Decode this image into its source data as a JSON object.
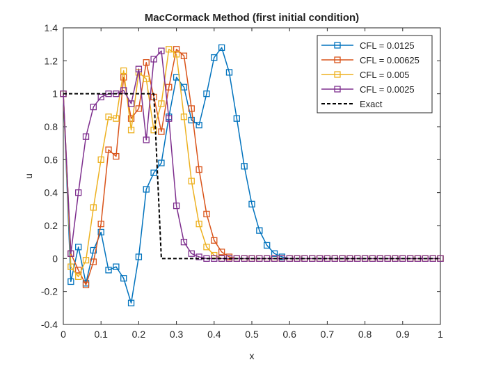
{
  "chart_data": {
    "type": "line",
    "title": "MacCormack Method (first initial condition)",
    "xlabel": "x",
    "ylabel": "u",
    "xlim": [
      0,
      1
    ],
    "ylim": [
      -0.4,
      1.4
    ],
    "xticks": [
      0,
      0.1,
      0.2,
      0.3,
      0.4,
      0.5,
      0.6,
      0.7,
      0.8,
      0.9,
      1
    ],
    "yticks": [
      -0.4,
      -0.2,
      0,
      0.2,
      0.4,
      0.6,
      0.8,
      1,
      1.2,
      1.4
    ],
    "grid": true,
    "legend_position": "top-right",
    "x": [
      0,
      0.02,
      0.04,
      0.06,
      0.08,
      0.1,
      0.12,
      0.14,
      0.16,
      0.18,
      0.2,
      0.22,
      0.24,
      0.26,
      0.28,
      0.3,
      0.32,
      0.34,
      0.36,
      0.38,
      0.4,
      0.42,
      0.44,
      0.46,
      0.48,
      0.5,
      0.52,
      0.54,
      0.56,
      0.58,
      0.6,
      0.62,
      0.64,
      0.66,
      0.68,
      0.7,
      0.72,
      0.74,
      0.76,
      0.78,
      0.8,
      0.82,
      0.84,
      0.86,
      0.88,
      0.9,
      0.92,
      0.94,
      0.96,
      0.98,
      1.0
    ],
    "series": [
      {
        "name": "CFL = 0.0125",
        "color": "#0072BD",
        "marker": "square",
        "values": [
          1.0,
          -0.14,
          0.07,
          -0.15,
          0.05,
          0.16,
          -0.07,
          -0.05,
          -0.12,
          -0.27,
          0.01,
          0.42,
          0.52,
          0.58,
          0.86,
          1.1,
          1.04,
          0.84,
          0.81,
          1.0,
          1.22,
          1.28,
          1.13,
          0.85,
          0.56,
          0.33,
          0.17,
          0.08,
          0.03,
          0.01,
          0,
          0,
          0,
          0,
          0,
          0,
          0,
          0,
          0,
          0,
          0,
          0,
          0,
          0,
          0,
          0,
          0,
          0,
          0,
          0,
          0
        ]
      },
      {
        "name": "CFL = 0.00625",
        "color": "#D95319",
        "marker": "square",
        "values": [
          1.0,
          0.03,
          -0.07,
          -0.16,
          -0.02,
          0.21,
          0.66,
          0.62,
          1.1,
          0.85,
          0.91,
          1.19,
          0.98,
          0.77,
          1.04,
          1.27,
          1.23,
          0.91,
          0.54,
          0.27,
          0.11,
          0.04,
          0.01,
          0,
          0,
          0,
          0,
          0,
          0,
          0,
          0,
          0,
          0,
          0,
          0,
          0,
          0,
          0,
          0,
          0,
          0,
          0,
          0,
          0,
          0,
          0,
          0,
          0,
          0,
          0,
          0
        ]
      },
      {
        "name": "CFL = 0.005",
        "color": "#EDB120",
        "marker": "square",
        "values": [
          1.0,
          -0.05,
          -0.11,
          -0.01,
          0.31,
          0.6,
          0.86,
          0.85,
          1.14,
          0.78,
          1.13,
          1.09,
          0.78,
          0.94,
          1.27,
          1.24,
          0.86,
          0.47,
          0.21,
          0.07,
          0.02,
          0,
          0,
          0,
          0,
          0,
          0,
          0,
          0,
          0,
          0,
          0,
          0,
          0,
          0,
          0,
          0,
          0,
          0,
          0,
          0,
          0,
          0,
          0,
          0,
          0,
          0,
          0,
          0,
          0,
          0
        ]
      },
      {
        "name": "CFL = 0.0025",
        "color": "#7E2F8E",
        "marker": "square",
        "values": [
          1.0,
          0.03,
          0.4,
          0.74,
          0.92,
          0.98,
          1.0,
          1.0,
          1.02,
          0.94,
          1.15,
          0.72,
          1.21,
          1.26,
          0.85,
          0.32,
          0.1,
          0.03,
          0.01,
          0,
          0,
          0,
          0,
          0,
          0,
          0,
          0,
          0,
          0,
          0,
          0,
          0,
          0,
          0,
          0,
          0,
          0,
          0,
          0,
          0,
          0,
          0,
          0,
          0,
          0,
          0,
          0,
          0,
          0,
          0,
          0
        ]
      },
      {
        "name": "Exact",
        "color": "#000000",
        "marker": "none",
        "dashed": true,
        "x": [
          0,
          0.24,
          0.26,
          1.0
        ],
        "values": [
          1,
          1,
          0,
          0
        ]
      }
    ]
  }
}
